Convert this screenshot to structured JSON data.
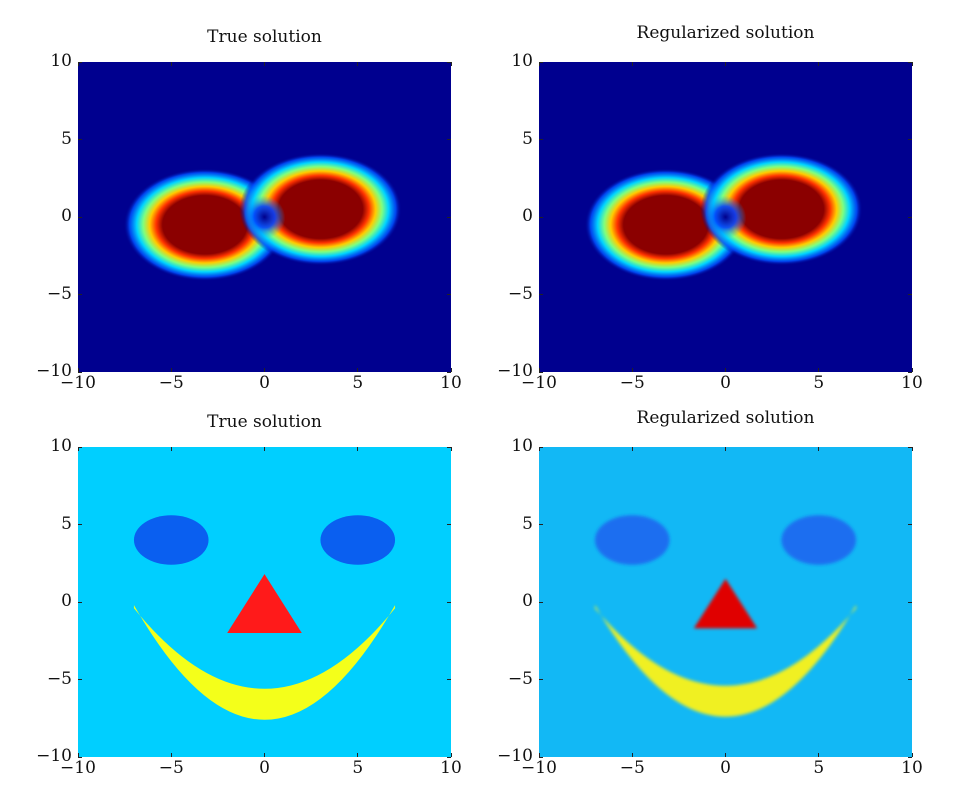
{
  "chart_data": [
    {
      "type": "heatmap",
      "title": "True solution",
      "xlim": [
        -10,
        10
      ],
      "ylim": [
        -10,
        10
      ],
      "xticks": [
        "−10",
        "−5",
        "0",
        "5",
        "10"
      ],
      "yticks": [
        "10",
        "5",
        "0",
        "−5",
        "−10"
      ],
      "colormap": "jet",
      "background_color": "#00008f",
      "features": [
        {
          "shape": "blob",
          "cx": -3.2,
          "cy": -0.5,
          "rx": 3.0,
          "ry": 2.5,
          "peak_color": "#8b0000"
        },
        {
          "shape": "blob",
          "cx": 3.0,
          "cy": 0.5,
          "rx": 3.0,
          "ry": 2.5,
          "peak_color": "#8b0000"
        },
        {
          "shape": "dip",
          "cx": 0.0,
          "cy": 0.0,
          "peak_color": "#00008b"
        }
      ]
    },
    {
      "type": "heatmap",
      "title": "Regularized solution",
      "xlim": [
        -10,
        10
      ],
      "ylim": [
        -10,
        10
      ],
      "xticks": [
        "−10",
        "−5",
        "0",
        "5",
        "10"
      ],
      "yticks": [
        "10",
        "5",
        "0",
        "−5",
        "−10"
      ],
      "colormap": "jet",
      "background_color": "#00008f",
      "features": [
        {
          "shape": "blob",
          "cx": -3.2,
          "cy": -0.5,
          "rx": 3.0,
          "ry": 2.5,
          "peak_color": "#8b0000"
        },
        {
          "shape": "blob",
          "cx": 3.0,
          "cy": 0.5,
          "rx": 3.0,
          "ry": 2.5,
          "peak_color": "#8b0000"
        },
        {
          "shape": "dip",
          "cx": 0.0,
          "cy": 0.0,
          "peak_color": "#00008b"
        }
      ]
    },
    {
      "type": "heatmap",
      "title": "True solution",
      "xlim": [
        -10,
        10
      ],
      "ylim": [
        -10,
        10
      ],
      "xticks": [
        "−10",
        "−5",
        "0",
        "5",
        "10"
      ],
      "yticks": [
        "10",
        "5",
        "0",
        "−5",
        "−10"
      ],
      "colormap": "jet",
      "background_color": "#00cfff",
      "features": [
        {
          "shape": "ellipse",
          "cx": -5.0,
          "cy": 4.0,
          "rx": 2.0,
          "ry": 1.6,
          "color": "#0a5ff0"
        },
        {
          "shape": "ellipse",
          "cx": 5.0,
          "cy": 4.0,
          "rx": 2.0,
          "ry": 1.6,
          "color": "#0a5ff0"
        },
        {
          "shape": "triangle",
          "points": [
            [
              0,
              1.8
            ],
            [
              -2.0,
              -2.0
            ],
            [
              2.0,
              -2.0
            ]
          ],
          "color": "#ff1a1a"
        },
        {
          "shape": "smile",
          "x_from": -7.0,
          "x_to": 7.0,
          "y_top_edge": -0.2,
          "y_bottom_center": -7.6,
          "thickness": 2.0,
          "color": "#f4ff1a"
        }
      ]
    },
    {
      "type": "heatmap",
      "title": "Regularized solution",
      "xlim": [
        -10,
        10
      ],
      "ylim": [
        -10,
        10
      ],
      "xticks": [
        "−10",
        "−5",
        "0",
        "5",
        "10"
      ],
      "yticks": [
        "10",
        "5",
        "0",
        "−5",
        "−10"
      ],
      "colormap": "jet",
      "background_color": "#12b8f5",
      "features": [
        {
          "shape": "ellipse",
          "cx": -5.0,
          "cy": 4.0,
          "rx": 2.0,
          "ry": 1.6,
          "color": "#1e6ef0"
        },
        {
          "shape": "ellipse",
          "cx": 5.0,
          "cy": 4.0,
          "rx": 2.0,
          "ry": 1.6,
          "color": "#1e6ef0"
        },
        {
          "shape": "triangle",
          "points": [
            [
              0,
              1.5
            ],
            [
              -1.7,
              -1.7
            ],
            [
              1.7,
              -1.7
            ]
          ],
          "color": "#e00000"
        },
        {
          "shape": "smile",
          "x_from": -7.0,
          "x_to": 7.0,
          "y_top_edge": -0.2,
          "y_bottom_center": -7.4,
          "thickness": 2.0,
          "color": "#f0f020"
        }
      ]
    }
  ]
}
